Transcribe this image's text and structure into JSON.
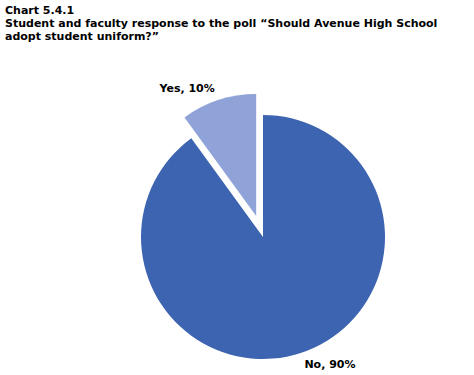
{
  "chart_data": {
    "type": "pie",
    "title": "Chart 5.4.1",
    "subtitle": "Student and faculty response to the poll “Should Avenue High School adopt student uniform?”",
    "categories": [
      "Yes",
      "No"
    ],
    "values": [
      10,
      90
    ],
    "value_labels": [
      "Yes, 10%",
      "No, 90%"
    ],
    "colors": [
      "#8fa3d8",
      "#3d64b0"
    ],
    "data_labels": true
  }
}
